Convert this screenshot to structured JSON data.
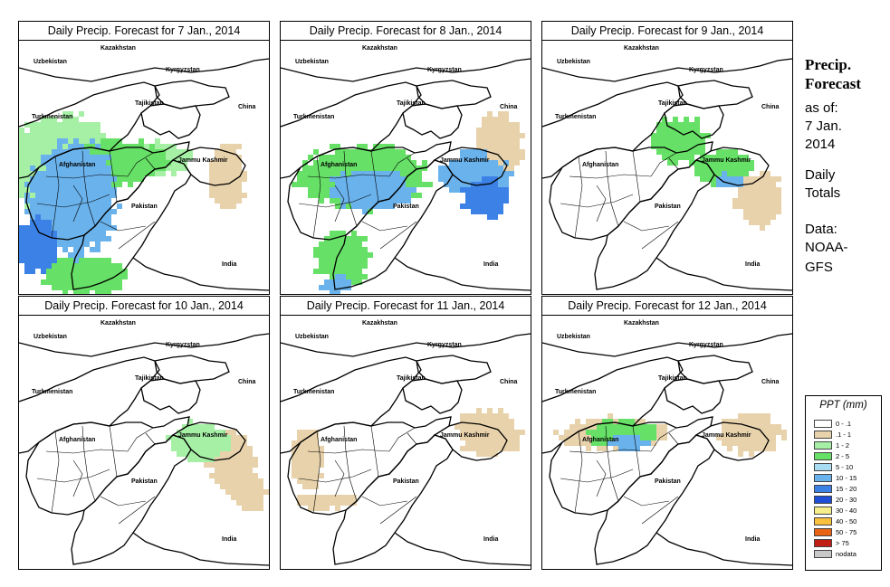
{
  "panels": [
    {
      "title": "Daily Precip. Forecast for  7 Jan., 2014",
      "intensity": 1.0,
      "zones": [
        {
          "cx": 45,
          "cy": 140,
          "rx": 70,
          "ry": 65,
          "level": 2
        },
        {
          "cx": 60,
          "cy": 175,
          "rx": 55,
          "ry": 70,
          "level": 5
        },
        {
          "cx": 20,
          "cy": 225,
          "rx": 25,
          "ry": 35,
          "level": 6
        },
        {
          "cx": 110,
          "cy": 135,
          "rx": 60,
          "ry": 30,
          "level": 3
        },
        {
          "cx": 150,
          "cy": 130,
          "rx": 45,
          "ry": 20,
          "level": 2
        },
        {
          "cx": 230,
          "cy": 150,
          "rx": 25,
          "ry": 40,
          "level": 1
        },
        {
          "cx": 70,
          "cy": 260,
          "rx": 50,
          "ry": 25,
          "level": 3
        }
      ]
    },
    {
      "title": "Daily Precip. Forecast for  8 Jan., 2014",
      "intensity": 1.0,
      "zones": [
        {
          "cx": 90,
          "cy": 150,
          "rx": 80,
          "ry": 40,
          "level": 3
        },
        {
          "cx": 100,
          "cy": 165,
          "rx": 50,
          "ry": 25,
          "level": 5
        },
        {
          "cx": 215,
          "cy": 150,
          "rx": 45,
          "ry": 30,
          "level": 5
        },
        {
          "cx": 225,
          "cy": 175,
          "rx": 30,
          "ry": 25,
          "level": 6
        },
        {
          "cx": 70,
          "cy": 240,
          "rx": 35,
          "ry": 35,
          "level": 3
        },
        {
          "cx": 60,
          "cy": 270,
          "rx": 20,
          "ry": 12,
          "level": 5
        },
        {
          "cx": 240,
          "cy": 115,
          "rx": 30,
          "ry": 40,
          "level": 1
        }
      ]
    },
    {
      "title": "Daily Precip. Forecast for  9 Jan., 2014",
      "intensity": 1.0,
      "zones": [
        {
          "cx": 150,
          "cy": 110,
          "rx": 35,
          "ry": 30,
          "level": 3
        },
        {
          "cx": 200,
          "cy": 140,
          "rx": 40,
          "ry": 22,
          "level": 3
        },
        {
          "cx": 205,
          "cy": 155,
          "rx": 20,
          "ry": 10,
          "level": 5
        },
        {
          "cx": 240,
          "cy": 175,
          "rx": 30,
          "ry": 35,
          "level": 1
        }
      ]
    },
    {
      "title": "Daily Precip. Forecast for  10 Jan., 2014",
      "intensity": 0.7,
      "zones": [
        {
          "cx": 200,
          "cy": 140,
          "rx": 40,
          "ry": 25,
          "level": 2
        },
        {
          "cx": 235,
          "cy": 160,
          "rx": 30,
          "ry": 40,
          "level": 1
        },
        {
          "cx": 255,
          "cy": 195,
          "rx": 20,
          "ry": 25,
          "level": 1
        }
      ]
    },
    {
      "title": "Daily Precip. Forecast for  11 Jan., 2014",
      "intensity": 0.6,
      "zones": [
        {
          "cx": 230,
          "cy": 130,
          "rx": 40,
          "ry": 30,
          "level": 1
        },
        {
          "cx": 30,
          "cy": 160,
          "rx": 20,
          "ry": 40,
          "level": 1
        },
        {
          "cx": 50,
          "cy": 205,
          "rx": 40,
          "ry": 10,
          "level": 1
        }
      ]
    },
    {
      "title": "Daily Precip. Forecast for  12 Jan., 2014",
      "intensity": 1.0,
      "zones": [
        {
          "cx": 80,
          "cy": 130,
          "rx": 70,
          "ry": 20,
          "level": 1
        },
        {
          "cx": 90,
          "cy": 130,
          "rx": 45,
          "ry": 18,
          "level": 3
        },
        {
          "cx": 95,
          "cy": 140,
          "rx": 25,
          "ry": 10,
          "level": 5
        },
        {
          "cx": 230,
          "cy": 130,
          "rx": 40,
          "ry": 25,
          "level": 1
        }
      ]
    }
  ],
  "map_labels": {
    "kazakhstan": "Kazakhstan",
    "uzbekistan": "Uzbekistan",
    "kyrgyzstan": "Kyrgyzstan",
    "tajikistan": "Tajikistan",
    "turkmenistan": "Turkmenistan",
    "china": "China",
    "afghanistan": "Afghanistan",
    "jammu_kashmir": "Jammu Kashmir",
    "pakistan": "Pakistan",
    "india": "India"
  },
  "sidebar": {
    "title_line1": "Precip.",
    "title_line2": "Forecast",
    "as_of": "as of:",
    "date_line1": "7 Jan.",
    "date_line2": "2014",
    "totals_line1": "Daily",
    "totals_line2": "Totals",
    "data_line1": "Data:",
    "data_line2": "NOAA-",
    "data_line3": "GFS"
  },
  "legend": {
    "title": "PPT (mm)",
    "items": [
      {
        "label": "0 - .1",
        "color": "#ffffff"
      },
      {
        "label": ".1 - 1",
        "color": "#e8d2ab"
      },
      {
        "label": "1 - 2",
        "color": "#a6f0a6"
      },
      {
        "label": "2 - 5",
        "color": "#66e066"
      },
      {
        "label": "5 - 10",
        "color": "#a8dcf2"
      },
      {
        "label": "10 - 15",
        "color": "#6ab2ec"
      },
      {
        "label": "15 - 20",
        "color": "#3c82e6"
      },
      {
        "label": "20 - 30",
        "color": "#1e4fd6"
      },
      {
        "label": "30 - 40",
        "color": "#f6ee8a"
      },
      {
        "label": "40 - 50",
        "color": "#f8c03c"
      },
      {
        "label": "50 - 75",
        "color": "#e86414"
      },
      {
        "label": "> 75",
        "color": "#c01e14"
      },
      {
        "label": "nodata",
        "color": "#c8c8c8"
      }
    ]
  }
}
